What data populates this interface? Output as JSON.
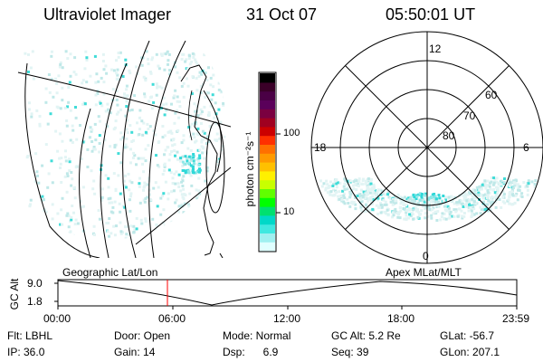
{
  "header": {
    "instrument": "Ultraviolet Imager",
    "date": "31 Oct 07",
    "time": "05:50:01 UT"
  },
  "colorbar": {
    "label": "photon cm⁻²s⁻¹",
    "ticks": [
      "100",
      "10"
    ],
    "colors": [
      "#000000",
      "#3a0028",
      "#4a0045",
      "#5a005a",
      "#7a0040",
      "#a00020",
      "#cc0000",
      "#ff3000",
      "#ff7000",
      "#ff9a00",
      "#ffc000",
      "#fff000",
      "#c8ff00",
      "#60ff00",
      "#00ff00",
      "#00e070",
      "#00d8c8",
      "#40e8e0",
      "#a0f0f0",
      "#e0ffff"
    ]
  },
  "polar": {
    "labels": {
      "top": "12",
      "left": "18",
      "right": "6",
      "bottom": "0"
    },
    "lat_labels": [
      "60",
      "70",
      "80"
    ]
  },
  "panel_labels": {
    "left": "Geographic Lat/Lon",
    "right": "Apex  MLat/MLT"
  },
  "altitude_plot": {
    "ylabel": "GC Alt",
    "y_ticks": [
      "9.0",
      "1.8"
    ],
    "x_ticks": [
      "00:00",
      "06:00",
      "12:00",
      "18:00",
      "23:59"
    ],
    "marker_color": "#ff0000"
  },
  "footer": {
    "row1": [
      {
        "label": "Flt: LBHL"
      },
      {
        "label": "Door: Open"
      },
      {
        "label": "Mode: Normal"
      },
      {
        "label": "GC Alt: 5.2 Re"
      },
      {
        "label": "GLat: -56.7"
      }
    ],
    "row2": [
      {
        "label": "IP: 36.0"
      },
      {
        "label": "Gain: 14"
      },
      {
        "label": "Dsp:      6.9"
      },
      {
        "label": "Seq: 39"
      },
      {
        "label": "GLon: 207.1"
      }
    ]
  }
}
